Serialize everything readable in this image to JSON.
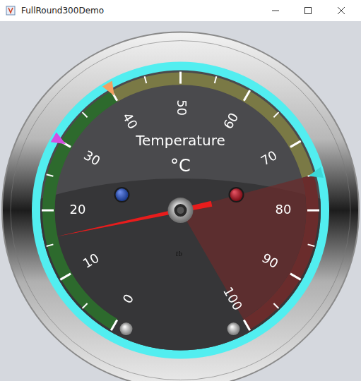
{
  "window_title": "FullRound300Demo",
  "chart_data": {
    "type": "gauge",
    "title": "Temperature",
    "unit": "°C",
    "value": 16,
    "ylim": [
      0,
      100
    ],
    "yticks": [
      0,
      10,
      20,
      30,
      40,
      50,
      60,
      70,
      80,
      90,
      100
    ],
    "sections": [
      {
        "from": 0,
        "to": 40,
        "color": "#2d6a2d"
      },
      {
        "from": 40,
        "to": 75,
        "color": "#7a7945"
      },
      {
        "from": 75,
        "to": 100,
        "color": "#6a2c2c"
      }
    ],
    "markers": [
      {
        "value": 30,
        "color": "#d64ce2"
      },
      {
        "value": 40,
        "color": "#f2a062"
      },
      {
        "value": 75,
        "color": "#3cd8d8"
      }
    ],
    "annotation": "tb"
  }
}
